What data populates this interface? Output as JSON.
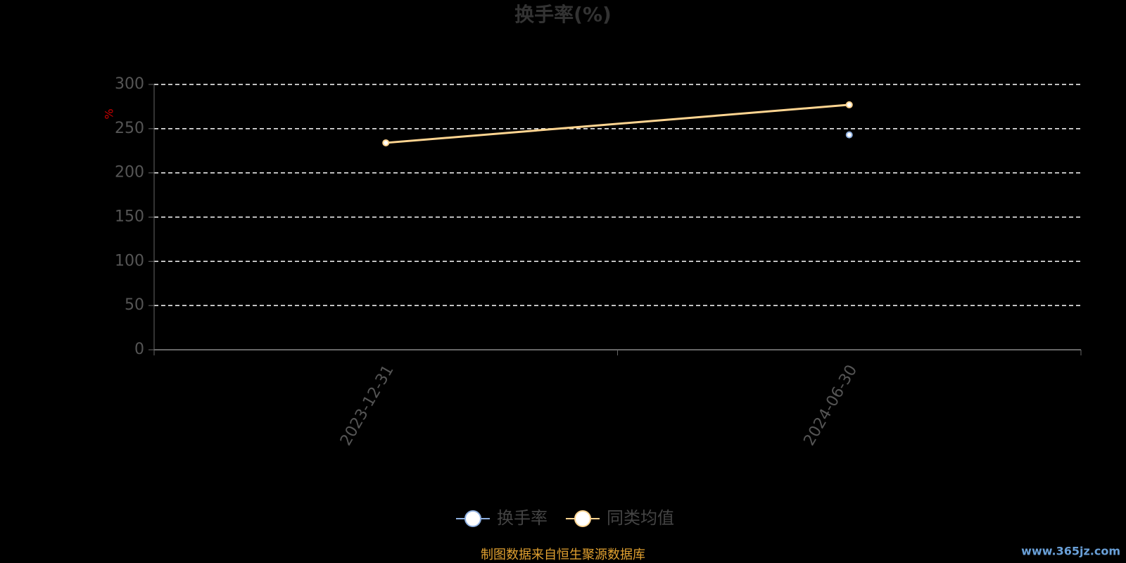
{
  "chart_data": {
    "type": "line",
    "title": "换手率(%)",
    "y_label": "%",
    "categories": [
      "2023-12-31",
      "2024-06-30"
    ],
    "series": [
      {
        "name": "换手率",
        "color": "#8fb0e0",
        "values": [
          null,
          243
        ]
      },
      {
        "name": "同类均值",
        "color": "#ffd591",
        "values": [
          234,
          277
        ]
      }
    ],
    "ylim": [
      0,
      300
    ],
    "yticks": [
      0,
      50,
      100,
      150,
      200,
      250,
      300
    ],
    "grid": true,
    "source": "制图数据来自恒生聚源数据库",
    "watermark": "www.365jz.com"
  }
}
